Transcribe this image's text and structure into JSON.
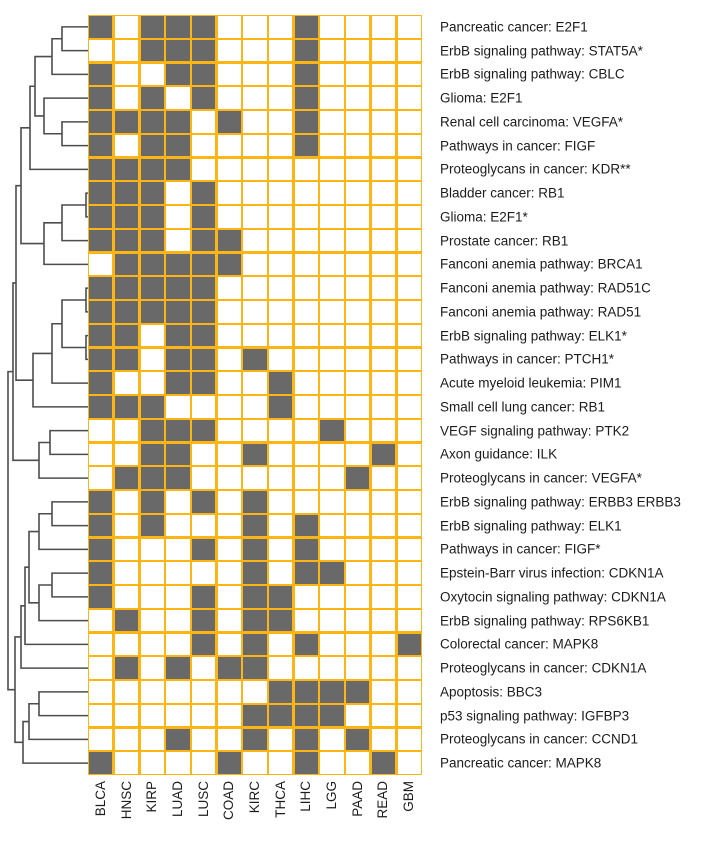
{
  "figure": {
    "description": "Hierarchically clustered binary heatmap of cancer pathway/gene associations across TCGA tumor types",
    "colors": {
      "filled_cell": "#696969",
      "empty_cell": "#FFFFFF",
      "grid_line": "#FCB514",
      "dendrogram_line": "#4D4D4D",
      "label_text": "#1C1C1C"
    }
  },
  "chart_data": {
    "type": "heatmap",
    "columns": [
      "BLCA",
      "HNSC",
      "KIRP",
      "LUAD",
      "LUSC",
      "COAD",
      "KIRC",
      "THCA",
      "LIHC",
      "LGG",
      "PAAD",
      "READ",
      "GBM"
    ],
    "rows": [
      "Pancreatic cancer: E2F1",
      "ErbB signaling pathway: STAT5A*",
      "ErbB signaling pathway: CBLC",
      "Glioma: E2F1",
      "Renal cell carcinoma: VEGFA*",
      "Pathways in cancer: FIGF",
      "Proteoglycans in cancer: KDR**",
      "Bladder cancer: RB1",
      "Glioma: E2F1*",
      "Prostate cancer: RB1",
      "Fanconi anemia pathway: BRCA1",
      "Fanconi anemia pathway: RAD51C",
      "Fanconi anemia pathway: RAD51",
      "ErbB signaling pathway: ELK1*",
      "Pathways in cancer: PTCH1*",
      "Acute myeloid leukemia: PIM1",
      "Small cell lung cancer: RB1",
      "VEGF signaling pathway: PTK2",
      "Axon guidance: ILK",
      "Proteoglycans in cancer: VEGFA*",
      "ErbB signaling pathway: ERBB3 ERBB3",
      "ErbB signaling pathway: ELK1",
      "Pathways in cancer: FIGF*",
      "Epstein-Barr virus infection: CDKN1A",
      "Oxytocin signaling pathway: CDKN1A",
      "ErbB signaling pathway: RPS6KB1",
      "Colorectal cancer: MAPK8",
      "Proteoglycans in cancer: CDKN1A",
      "Apoptosis: BBC3",
      "p53 signaling pathway: IGFBP3",
      "Proteoglycans in cancer: CCND1",
      "Pancreatic cancer: MAPK8"
    ],
    "matrix": [
      "1011100010000",
      "0011100010000",
      "1001100010000",
      "1010100010000",
      "1111010010000",
      "1011000010000",
      "1111000000000",
      "1110100000000",
      "1110100000000",
      "1110110000000",
      "0111110000000",
      "1111100000000",
      "1111100000000",
      "1101100000000",
      "1101101000000",
      "1001100100000",
      "1110000100000",
      "0011100001000",
      "0011001000010",
      "0111000000100",
      "1010101000000",
      "1010001010000",
      "1000101010000",
      "1000001011000",
      "1000101100000",
      "0100101100000",
      "0000101010001",
      "0101011000000",
      "0000000111100",
      "0000001111000",
      "0001001010100",
      "1000010010010"
    ],
    "cell_values": {
      "1": "associated (filled)",
      "0": "not associated (empty)"
    },
    "legend_position": "none",
    "grid": true
  },
  "dendrogram": {
    "orientation": "left",
    "merges": [
      [
        "n1",
        "L1",
        "L2",
        62
      ],
      [
        "n2",
        "n1",
        "L3",
        52
      ],
      [
        "n3",
        "L5",
        "L6",
        62
      ],
      [
        "n4",
        "L4",
        "n3",
        44
      ],
      [
        "n5",
        "n2",
        "n4",
        35
      ],
      [
        "n6",
        "n5",
        "L7",
        30
      ],
      [
        "n7",
        "L8",
        "L9",
        86
      ],
      [
        "n8",
        "n7",
        "L10",
        62
      ],
      [
        "n9",
        "n8",
        "L11",
        44
      ],
      [
        "n10",
        "n6",
        "n9",
        21
      ],
      [
        "n11",
        "L12",
        "L13",
        86
      ],
      [
        "n12",
        "L14",
        "L15",
        86
      ],
      [
        "n13",
        "n11",
        "n12",
        62
      ],
      [
        "n14",
        "n13",
        "L16",
        52
      ],
      [
        "n15",
        "n14",
        "L17",
        33
      ],
      [
        "n16",
        "n10",
        "n15",
        16
      ],
      [
        "n17",
        "L18",
        "L19",
        50
      ],
      [
        "n18",
        "n17",
        "L20",
        39
      ],
      [
        "n19",
        "n16",
        "n18",
        13
      ],
      [
        "n20",
        "L21",
        "L22",
        52
      ],
      [
        "n21",
        "n20",
        "L23",
        39
      ],
      [
        "n22",
        "L24",
        "L25",
        52
      ],
      [
        "n23",
        "n22",
        "L26",
        39
      ],
      [
        "n24",
        "n21",
        "n23",
        29
      ],
      [
        "n25",
        "n24",
        "L27",
        25
      ],
      [
        "n26",
        "n25",
        "L28",
        21
      ],
      [
        "n27",
        "L29",
        "L30",
        39
      ],
      [
        "n28",
        "n27",
        "L31",
        29
      ],
      [
        "n29",
        "n28",
        "L32",
        23
      ],
      [
        "n30",
        "n26",
        "n29",
        15
      ],
      [
        "n31",
        "n19",
        "n30",
        8
      ]
    ]
  }
}
